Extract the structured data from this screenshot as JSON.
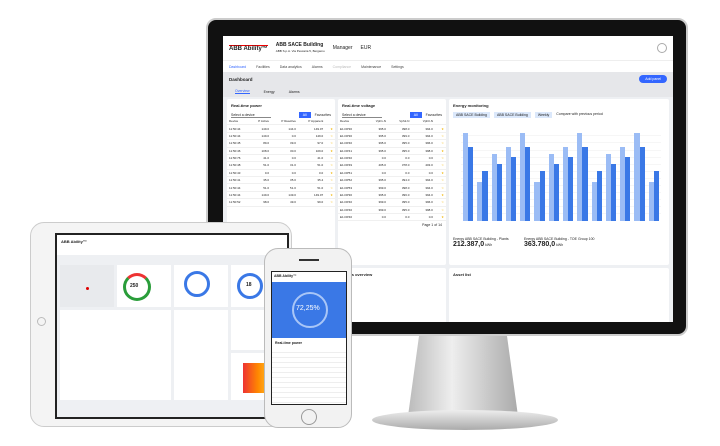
{
  "app": {
    "brand": "ABB Ability™",
    "building": "ABB SACE Building",
    "address": "ABB S.p.A. Via Pescaria 5, Bergamo"
  },
  "header": {
    "user": "Manager",
    "units": "EUR"
  },
  "nav": [
    "Dashboard",
    "Facilities",
    "Data analytics",
    "Alarms",
    "Compliance",
    "Maintenance",
    "Settings"
  ],
  "dashboard": {
    "title": "Dashboard",
    "add_panel": "Add panel",
    "tabs": [
      "Overview",
      "Energy",
      "Alarms"
    ]
  },
  "power": {
    "title": "Real-time power",
    "filter_label": "Device",
    "select_placeholder": "Select a device",
    "all": "All",
    "favourites": "Favourites",
    "columns": [
      "Device",
      "P Active",
      "P Reactive",
      "P Apparent"
    ],
    "rows": [
      [
        "11:50:44",
        "149.0",
        "144.0",
        "149.07"
      ],
      [
        "11:50:44",
        "149.0",
        "0.0",
        "149.0"
      ],
      [
        "11:50:45",
        "89.0",
        "39.0",
        "97.0"
      ],
      [
        "11:50:46",
        "108.0",
        "30.0",
        "109.0"
      ],
      [
        "11:50:76",
        "41.0",
        "0.0",
        "41.0"
      ],
      [
        "11:50:48",
        "51.0",
        "31.0",
        "51.0"
      ],
      [
        "11:50:43",
        "0.0",
        "0.0",
        "0.0"
      ],
      [
        "11:50:41",
        "35.0",
        "35.0",
        "35.4"
      ],
      [
        "11:50:44",
        "51.0",
        "51.0",
        "51.0"
      ],
      [
        "11:50:44",
        "149.0",
        "149.0",
        "149.07"
      ],
      [
        "11:50:52",
        "98.0",
        "49.0",
        "99.0"
      ]
    ]
  },
  "voltage": {
    "title": "Real-time voltage",
    "filter_label": "Device",
    "select_placeholder": "Select a device",
    "all": "All",
    "favourites": "Favourites",
    "columns": [
      "Device",
      "Vph1-N",
      "Vph2-N",
      "Vph3-N"
    ],
    "rows": [
      [
        "E1.DP30",
        "395.0",
        "398.0",
        "394.0"
      ],
      [
        "E1.DP30",
        "395.0",
        "399.0",
        "394.0"
      ],
      [
        "E1.DP40",
        "395.0",
        "395.0",
        "396.0"
      ],
      [
        "E1.DP41",
        "395.0",
        "395.0",
        "398.0"
      ],
      [
        "E1.DP40",
        "0.0",
        "0.0",
        "0.0"
      ],
      [
        "E1.DP49",
        "405.0",
        "378.0",
        "403.0"
      ],
      [
        "E1.DP51",
        "0.0",
        "0.0",
        "0.0"
      ],
      [
        "E1.DP52",
        "395.0",
        "394.0",
        "394.0"
      ],
      [
        "E1.DP53",
        "399.0",
        "398.0",
        "394.0"
      ],
      [
        "E1.DP30",
        "395.0",
        "396.0",
        "394.0"
      ],
      [
        "E1.DP40",
        "399.0",
        "395.0",
        "396.0"
      ],
      [
        "E1.DP40",
        "399.0",
        "395.0",
        "398.0"
      ],
      [
        "E1.DP40",
        "0.0",
        "0.0",
        "0.0"
      ]
    ],
    "pagination": "Page 1 of 14"
  },
  "energy": {
    "title": "Energy monitoring",
    "filters": [
      "ABB SACE Building",
      "ABB SACE Building",
      "Weekly"
    ],
    "compare": "Compare with previous period",
    "total1_label": "Energy ABB SACE Building - Plants",
    "total1": "212.387,0",
    "unit": "kWh",
    "total2_label": "Energy ABB SACE Building - TOE Group 100",
    "total2": "363.780,0"
  },
  "chart_data": {
    "type": "bar",
    "series": [
      {
        "name": "Current",
        "values": [
          12.5,
          5.5,
          9.5,
          10.5,
          12.5,
          5.5,
          9.5,
          10.5,
          12.5,
          5.5,
          9.5,
          10.5,
          12.5,
          5.5
        ]
      },
      {
        "name": "Previous",
        "values": [
          10.5,
          7,
          8,
          9,
          10.5,
          7,
          8,
          9,
          10.5,
          7,
          8,
          9,
          10.5,
          7
        ]
      }
    ],
    "ylim": [
      0,
      13
    ],
    "grid": true,
    "legend": "top-right",
    "colors": [
      "#9bbcf5",
      "#3a78e6"
    ]
  },
  "assets": {
    "title": "Asset list"
  },
  "overview": {
    "title": "Plants overview"
  },
  "tablet": {
    "donut1": "250",
    "donut2": "18"
  },
  "phone": {
    "gauge": "72,25%",
    "panel": "Real-time power"
  }
}
